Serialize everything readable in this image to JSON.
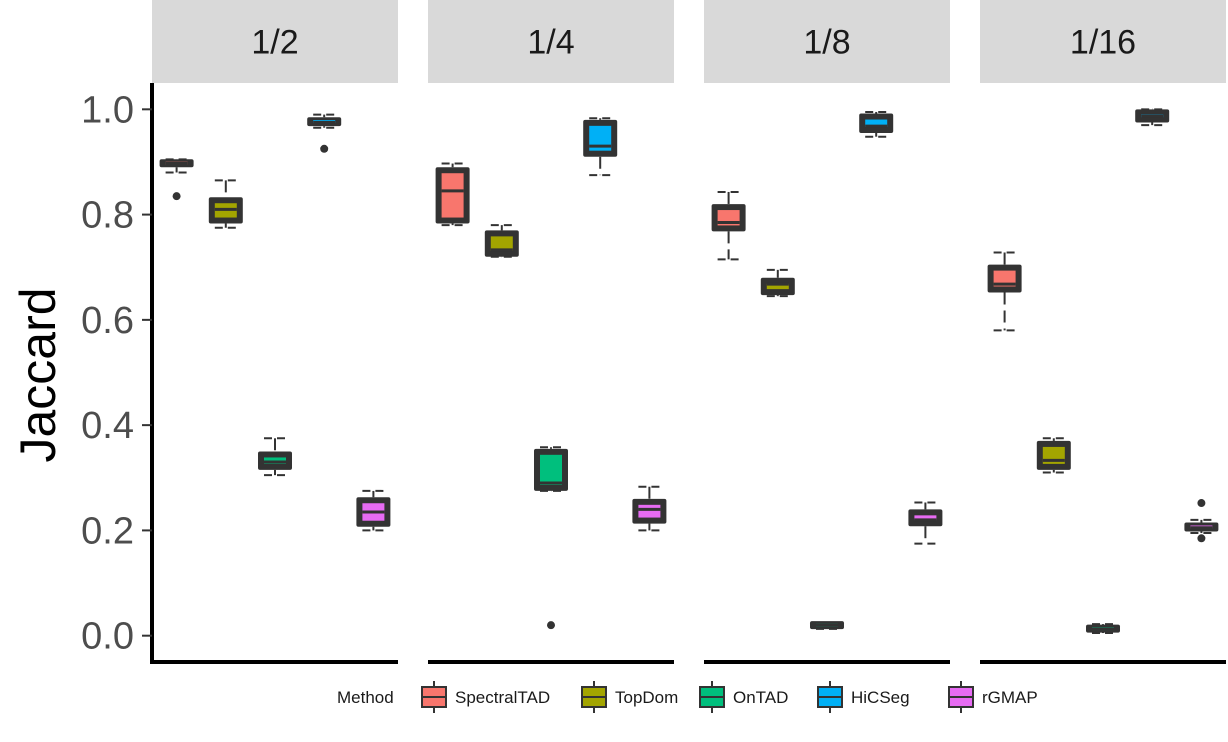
{
  "chart_data": {
    "type": "boxplot",
    "ylabel": "Jaccard",
    "xlabel": "",
    "ylim": [
      -0.05,
      1.05
    ],
    "yticks": [
      0.0,
      0.2,
      0.4,
      0.6,
      0.8,
      1.0
    ],
    "ytick_labels": [
      "0.0",
      "0.2",
      "0.4",
      "0.6",
      "0.8",
      "1.0"
    ],
    "grid": false,
    "legend": {
      "title": "Method",
      "position": "bottom",
      "entries": [
        {
          "name": "SpectralTAD",
          "color": "#F8766D"
        },
        {
          "name": "TopDom",
          "color": "#A3A500"
        },
        {
          "name": "OnTAD",
          "color": "#00BF7D"
        },
        {
          "name": "HiCSeg",
          "color": "#00B0F6"
        },
        {
          "name": "rGMAP",
          "color": "#E76BF3"
        }
      ]
    },
    "facets": [
      {
        "label": "1/2",
        "boxes": [
          {
            "method": "SpectralTAD",
            "whisker_low": 0.88,
            "q1": 0.89,
            "median": 0.897,
            "q3": 0.905,
            "whisker_high": 0.905,
            "outliers": [
              0.835
            ]
          },
          {
            "method": "TopDom",
            "whisker_low": 0.775,
            "q1": 0.783,
            "median": 0.81,
            "q3": 0.833,
            "whisker_high": 0.865,
            "outliers": []
          },
          {
            "method": "OnTAD",
            "whisker_low": 0.305,
            "q1": 0.315,
            "median": 0.33,
            "q3": 0.35,
            "whisker_high": 0.375,
            "outliers": []
          },
          {
            "method": "HiCSeg",
            "whisker_low": 0.965,
            "q1": 0.968,
            "median": 0.975,
            "q3": 0.985,
            "whisker_high": 0.99,
            "outliers": [
              0.925
            ]
          },
          {
            "method": "rGMAP",
            "whisker_low": 0.2,
            "q1": 0.207,
            "median": 0.235,
            "q3": 0.263,
            "whisker_high": 0.275,
            "outliers": []
          }
        ]
      },
      {
        "label": "1/4",
        "boxes": [
          {
            "method": "SpectralTAD",
            "whisker_low": 0.78,
            "q1": 0.783,
            "median": 0.845,
            "q3": 0.89,
            "whisker_high": 0.897,
            "outliers": []
          },
          {
            "method": "TopDom",
            "whisker_low": 0.72,
            "q1": 0.72,
            "median": 0.733,
            "q3": 0.77,
            "whisker_high": 0.78,
            "outliers": []
          },
          {
            "method": "OnTAD",
            "whisker_low": 0.275,
            "q1": 0.275,
            "median": 0.29,
            "q3": 0.355,
            "whisker_high": 0.358,
            "outliers": [
              0.02
            ]
          },
          {
            "method": "HiCSeg",
            "whisker_low": 0.875,
            "q1": 0.91,
            "median": 0.93,
            "q3": 0.98,
            "whisker_high": 0.983,
            "outliers": []
          },
          {
            "method": "rGMAP",
            "whisker_low": 0.2,
            "q1": 0.213,
            "median": 0.24,
            "q3": 0.26,
            "whisker_high": 0.283,
            "outliers": []
          }
        ]
      },
      {
        "label": "1/8",
        "boxes": [
          {
            "method": "SpectralTAD",
            "whisker_low": 0.715,
            "q1": 0.768,
            "median": 0.785,
            "q3": 0.82,
            "whisker_high": 0.843,
            "outliers": []
          },
          {
            "method": "TopDom",
            "whisker_low": 0.645,
            "q1": 0.647,
            "median": 0.668,
            "q3": 0.68,
            "whisker_high": 0.695,
            "outliers": []
          },
          {
            "method": "OnTAD",
            "whisker_low": 0.013,
            "q1": 0.015,
            "median": 0.02,
            "q3": 0.025,
            "whisker_high": 0.025,
            "outliers": []
          },
          {
            "method": "HiCSeg",
            "whisker_low": 0.948,
            "q1": 0.955,
            "median": 0.968,
            "q3": 0.992,
            "whisker_high": 0.995,
            "outliers": []
          },
          {
            "method": "rGMAP",
            "whisker_low": 0.175,
            "q1": 0.208,
            "median": 0.22,
            "q3": 0.24,
            "whisker_high": 0.253,
            "outliers": []
          }
        ]
      },
      {
        "label": "1/16",
        "boxes": [
          {
            "method": "SpectralTAD",
            "whisker_low": 0.58,
            "q1": 0.652,
            "median": 0.668,
            "q3": 0.705,
            "whisker_high": 0.728,
            "outliers": []
          },
          {
            "method": "TopDom",
            "whisker_low": 0.31,
            "q1": 0.315,
            "median": 0.333,
            "q3": 0.37,
            "whisker_high": 0.375,
            "outliers": []
          },
          {
            "method": "OnTAD",
            "whisker_low": 0.005,
            "q1": 0.007,
            "median": 0.013,
            "q3": 0.02,
            "whisker_high": 0.022,
            "outliers": []
          },
          {
            "method": "HiCSeg",
            "whisker_low": 0.97,
            "q1": 0.975,
            "median": 0.987,
            "q3": 1.0,
            "whisker_high": 1.0,
            "outliers": []
          },
          {
            "method": "rGMAP",
            "whisker_low": 0.195,
            "q1": 0.198,
            "median": 0.205,
            "q3": 0.215,
            "whisker_high": 0.22,
            "outliers": [
              0.252,
              0.185
            ]
          }
        ]
      }
    ]
  }
}
